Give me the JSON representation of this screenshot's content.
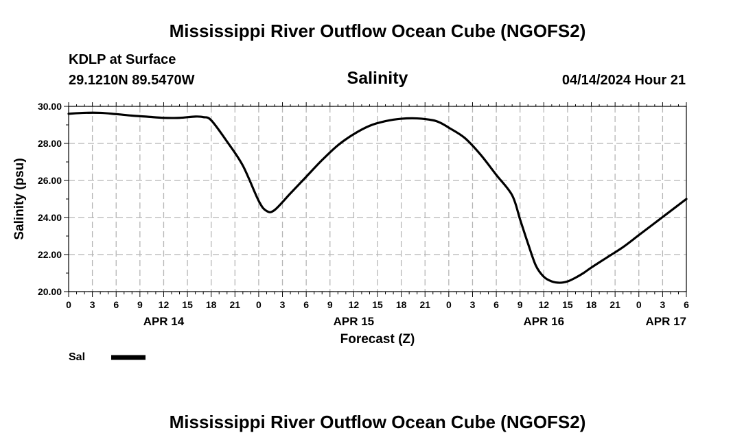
{
  "page": {
    "title_top": "Mississippi River Outflow Ocean Cube (NGOFS2)",
    "title_bottom": "Mississippi River Outflow Ocean Cube (NGOFS2)",
    "station": "KDLP at Surface",
    "coords": "29.1210N  89.5470W",
    "variable": "Salinity",
    "run_time": "04/14/2024 Hour 21"
  },
  "chart_data": {
    "type": "line",
    "title": "Salinity",
    "xlabel": "Forecast (Z)",
    "ylabel": "Salinity (psu)",
    "ylim": [
      20,
      30
    ],
    "xlim": [
      0,
      78
    ],
    "x_unit": "hours since 00Z APR 14",
    "y_ticks": [
      "20.00",
      "22.00",
      "24.00",
      "26.00",
      "28.00",
      "30.00"
    ],
    "x_ticks": [
      "0",
      "3",
      "6",
      "9",
      "12",
      "15",
      "18",
      "21",
      "0",
      "3",
      "6",
      "9",
      "12",
      "15",
      "18",
      "21",
      "0",
      "3",
      "6",
      "9",
      "12",
      "15",
      "18",
      "21",
      "0",
      "3",
      "6"
    ],
    "day_labels": [
      {
        "hour": 12,
        "label": "APR 14"
      },
      {
        "hour": 36,
        "label": "APR 15"
      },
      {
        "hour": 60,
        "label": "APR 16"
      },
      {
        "hour": 78,
        "label": "APR 17"
      }
    ],
    "grid": true,
    "legend": {
      "position": "bottom-left",
      "label": "Sal"
    },
    "series": [
      {
        "name": "Sal",
        "color": "#000000",
        "x": [
          0,
          2,
          4,
          6,
          8,
          10,
          12,
          14,
          16,
          17,
          18,
          20,
          22,
          24,
          25,
          26,
          28,
          30,
          32,
          34,
          36,
          38,
          40,
          42,
          44,
          46,
          47,
          48,
          50,
          52,
          54,
          56,
          57,
          58,
          59,
          60,
          61,
          62,
          63,
          64,
          65,
          66,
          68,
          70,
          72,
          74,
          76,
          78
        ],
        "y": [
          29.6,
          29.65,
          29.65,
          29.58,
          29.5,
          29.44,
          29.38,
          29.38,
          29.45,
          29.42,
          29.25,
          28.1,
          26.8,
          24.9,
          24.35,
          24.4,
          25.3,
          26.2,
          27.1,
          27.9,
          28.5,
          28.95,
          29.2,
          29.33,
          29.35,
          29.25,
          29.1,
          28.85,
          28.3,
          27.4,
          26.3,
          25.2,
          23.9,
          22.6,
          21.4,
          20.8,
          20.55,
          20.48,
          20.55,
          20.75,
          21.0,
          21.3,
          21.85,
          22.4,
          23.05,
          23.7,
          24.35,
          25.0
        ]
      }
    ]
  }
}
